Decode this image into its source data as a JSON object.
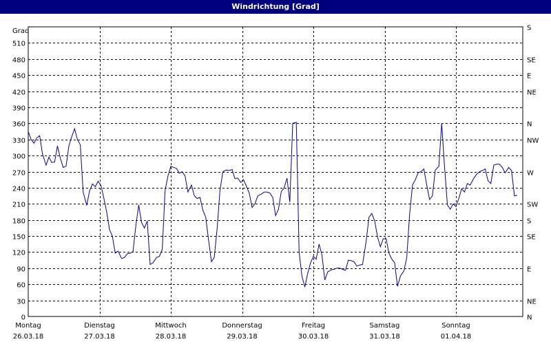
{
  "window": {
    "title": "Windrichtung [Grad]"
  },
  "chart_data": {
    "type": "line",
    "title": "Windrichtung [Grad]",
    "ylabel": "Grad",
    "ylim": [
      0,
      540
    ],
    "y_ticks": [
      0,
      30,
      60,
      90,
      120,
      150,
      180,
      210,
      240,
      270,
      300,
      330,
      360,
      390,
      420,
      450,
      480,
      510
    ],
    "right_axis_labels": [
      "N",
      "NE",
      "E",
      "SE",
      "S",
      "SW",
      "W",
      "NW",
      "N",
      "NE",
      "E",
      "SE",
      "S"
    ],
    "right_axis_values": [
      0,
      30,
      90,
      150,
      180,
      210,
      270,
      330,
      360,
      420,
      450,
      480,
      540
    ],
    "x_day_labels": [
      {
        "day": "Montag",
        "date": "26.03.18"
      },
      {
        "day": "Dienstag",
        "date": "27.03.18"
      },
      {
        "day": "Mittwoch",
        "date": "28.03.18"
      },
      {
        "day": "Donnerstag",
        "date": "29.03.18"
      },
      {
        "day": "Freitag",
        "date": "30.03.18"
      },
      {
        "day": "Samstag",
        "date": "31.03.18"
      },
      {
        "day": "Sonntag",
        "date": "01.04.18"
      }
    ],
    "xlim": [
      0,
      7.1
    ],
    "grid": true,
    "series_color": "#00009c",
    "series": [
      {
        "points": [
          [
            0.0,
            345
          ],
          [
            0.04,
            330
          ],
          [
            0.08,
            323
          ],
          [
            0.12,
            333
          ],
          [
            0.16,
            337
          ],
          [
            0.2,
            303
          ],
          [
            0.25,
            282
          ],
          [
            0.29,
            297
          ],
          [
            0.33,
            287
          ],
          [
            0.37,
            288
          ],
          [
            0.41,
            318
          ],
          [
            0.45,
            295
          ],
          [
            0.49,
            278
          ],
          [
            0.53,
            280
          ],
          [
            0.57,
            318
          ],
          [
            0.61,
            335
          ],
          [
            0.65,
            350
          ],
          [
            0.69,
            330
          ],
          [
            0.73,
            320
          ],
          [
            0.77,
            232
          ],
          [
            0.82,
            207
          ],
          [
            0.86,
            234
          ],
          [
            0.9,
            247
          ],
          [
            0.94,
            242
          ],
          [
            0.98,
            252
          ],
          [
            1.02,
            244
          ],
          [
            1.06,
            221
          ],
          [
            1.1,
            195
          ],
          [
            1.14,
            162
          ],
          [
            1.18,
            150
          ],
          [
            1.22,
            118
          ],
          [
            1.26,
            122
          ],
          [
            1.31,
            108
          ],
          [
            1.35,
            110
          ],
          [
            1.39,
            117
          ],
          [
            1.43,
            118
          ],
          [
            1.47,
            121
          ],
          [
            1.51,
            170
          ],
          [
            1.55,
            208
          ],
          [
            1.59,
            175
          ],
          [
            1.63,
            165
          ],
          [
            1.67,
            178
          ],
          [
            1.71,
            97
          ],
          [
            1.75,
            100
          ],
          [
            1.8,
            110
          ],
          [
            1.84,
            112
          ],
          [
            1.88,
            125
          ],
          [
            1.92,
            235
          ],
          [
            1.96,
            262
          ],
          [
            2.0,
            280
          ],
          [
            2.04,
            278
          ],
          [
            2.08,
            276
          ],
          [
            2.12,
            267
          ],
          [
            2.16,
            270
          ],
          [
            2.2,
            262
          ],
          [
            2.24,
            232
          ],
          [
            2.29,
            245
          ],
          [
            2.33,
            225
          ],
          [
            2.37,
            220
          ],
          [
            2.41,
            222
          ],
          [
            2.45,
            198
          ],
          [
            2.49,
            185
          ],
          [
            2.53,
            142
          ],
          [
            2.57,
            102
          ],
          [
            2.61,
            110
          ],
          [
            2.65,
            165
          ],
          [
            2.69,
            235
          ],
          [
            2.73,
            270
          ],
          [
            2.78,
            273
          ],
          [
            2.82,
            272
          ],
          [
            2.86,
            274
          ],
          [
            2.9,
            257
          ],
          [
            2.94,
            258
          ],
          [
            2.98,
            250
          ],
          [
            3.02,
            255
          ],
          [
            3.06,
            243
          ],
          [
            3.1,
            230
          ],
          [
            3.14,
            203
          ],
          [
            3.18,
            210
          ],
          [
            3.22,
            225
          ],
          [
            3.27,
            228
          ],
          [
            3.31,
            232
          ],
          [
            3.35,
            232
          ],
          [
            3.39,
            230
          ],
          [
            3.43,
            222
          ],
          [
            3.47,
            188
          ],
          [
            3.51,
            200
          ],
          [
            3.55,
            233
          ],
          [
            3.59,
            240
          ],
          [
            3.63,
            258
          ],
          [
            3.67,
            213
          ],
          [
            3.71,
            360
          ],
          [
            3.76,
            362
          ],
          [
            3.8,
            120
          ],
          [
            3.84,
            75
          ],
          [
            3.88,
            55
          ],
          [
            3.92,
            80
          ],
          [
            3.96,
            100
          ],
          [
            4.0,
            112
          ],
          [
            4.04,
            107
          ],
          [
            4.08,
            135
          ],
          [
            4.12,
            115
          ],
          [
            4.16,
            68
          ],
          [
            4.2,
            83
          ],
          [
            4.25,
            87
          ],
          [
            4.29,
            88
          ],
          [
            4.33,
            90
          ],
          [
            4.37,
            90
          ],
          [
            4.41,
            88
          ],
          [
            4.45,
            86
          ],
          [
            4.49,
            105
          ],
          [
            4.53,
            104
          ],
          [
            4.57,
            102
          ],
          [
            4.61,
            94
          ],
          [
            4.65,
            96
          ],
          [
            4.69,
            97
          ],
          [
            4.74,
            140
          ],
          [
            4.78,
            185
          ],
          [
            4.82,
            192
          ],
          [
            4.86,
            178
          ],
          [
            4.9,
            148
          ],
          [
            4.94,
            130
          ],
          [
            4.98,
            145
          ],
          [
            5.02,
            145
          ],
          [
            5.06,
            118
          ],
          [
            5.1,
            107
          ],
          [
            5.14,
            100
          ],
          [
            5.18,
            56
          ],
          [
            5.22,
            75
          ],
          [
            5.27,
            85
          ],
          [
            5.31,
            110
          ],
          [
            5.35,
            190
          ],
          [
            5.39,
            245
          ],
          [
            5.43,
            255
          ],
          [
            5.47,
            268
          ],
          [
            5.51,
            270
          ],
          [
            5.55,
            275
          ],
          [
            5.59,
            245
          ],
          [
            5.63,
            218
          ],
          [
            5.67,
            225
          ],
          [
            5.71,
            273
          ],
          [
            5.76,
            280
          ],
          [
            5.8,
            360
          ],
          [
            5.84,
            280
          ],
          [
            5.88,
            208
          ],
          [
            5.92,
            200
          ],
          [
            5.96,
            210
          ],
          [
            6.0,
            205
          ],
          [
            6.04,
            220
          ],
          [
            6.08,
            238
          ],
          [
            6.12,
            232
          ],
          [
            6.16,
            248
          ],
          [
            6.2,
            245
          ],
          [
            6.25,
            258
          ],
          [
            6.29,
            265
          ],
          [
            6.33,
            270
          ],
          [
            6.37,
            272
          ],
          [
            6.41,
            275
          ],
          [
            6.45,
            253
          ],
          [
            6.49,
            248
          ],
          [
            6.53,
            282
          ],
          [
            6.57,
            284
          ],
          [
            6.61,
            284
          ],
          [
            6.65,
            278
          ],
          [
            6.69,
            268
          ],
          [
            6.74,
            278
          ],
          [
            6.78,
            272
          ],
          [
            6.82,
            225
          ],
          [
            6.86,
            226
          ]
        ]
      }
    ]
  }
}
